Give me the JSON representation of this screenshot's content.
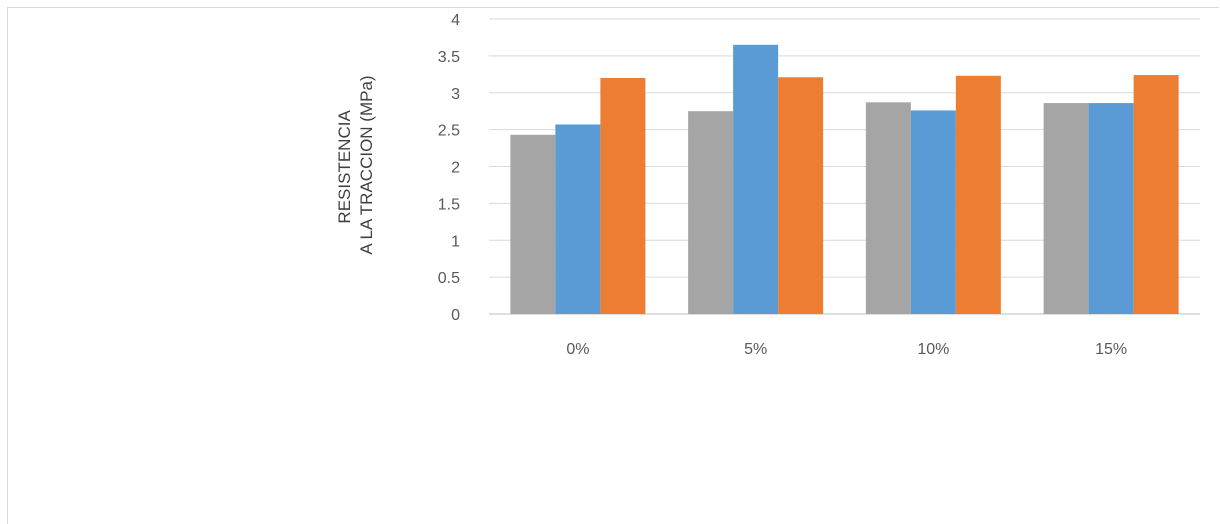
{
  "chart_data": {
    "type": "bar",
    "title": "",
    "xlabel": "",
    "ylabel_lines": [
      "RESISTENCIA",
      "A LA TRACCION (MPa)"
    ],
    "categories": [
      "0%",
      "5%",
      "10%",
      "15%"
    ],
    "series": [
      {
        "color": "#a5a5a5",
        "values": [
          2.43,
          2.75,
          2.87,
          2.86
        ]
      },
      {
        "color": "#5b9bd5",
        "values": [
          2.57,
          3.65,
          2.76,
          2.86
        ]
      },
      {
        "color": "#ed7d31",
        "values": [
          3.2,
          3.21,
          3.23,
          3.24
        ]
      }
    ],
    "ylim": [
      0,
      4
    ],
    "yticks": [
      "0",
      "0.5",
      "1",
      "1.5",
      "2",
      "2.5",
      "3",
      "3.5",
      "4"
    ],
    "grid": true,
    "legend": "none"
  }
}
